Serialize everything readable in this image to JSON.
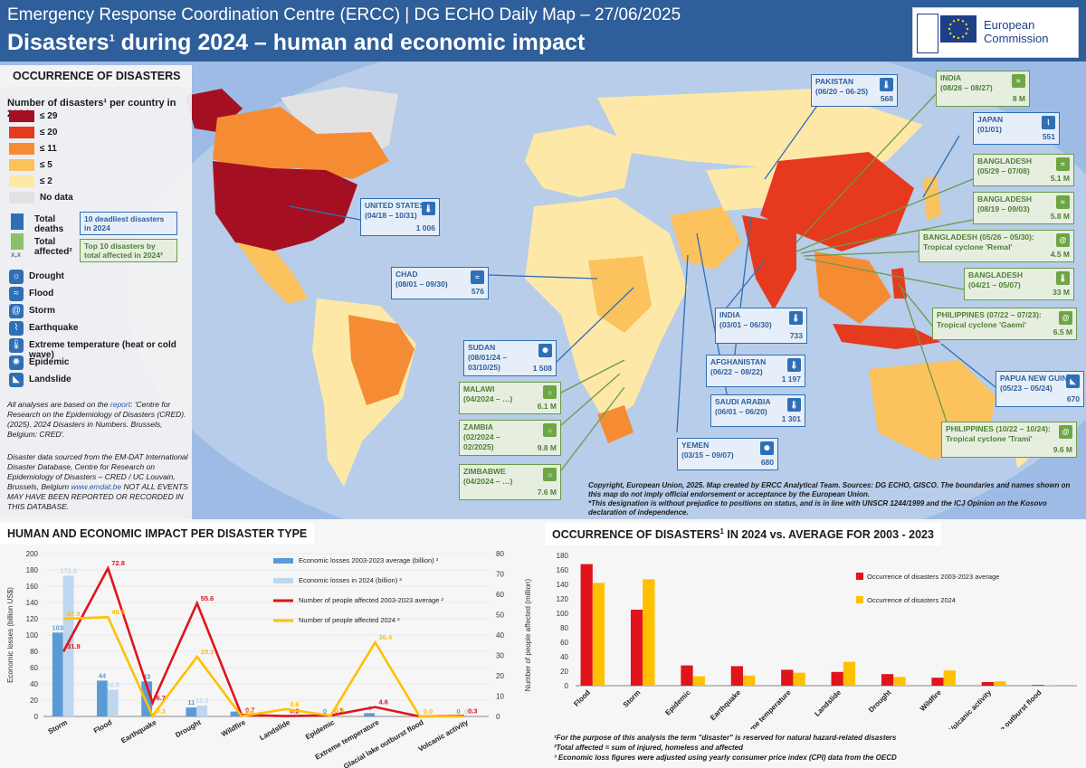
{
  "header": {
    "subtitle": "Emergency Response Coordination Centre (ERCC) | DG ECHO Daily Map – 27/06/2025",
    "title": "Disasters",
    "title_sup": "1",
    "title_rest": " during 2024 – human and economic impact",
    "logo_line1": "European",
    "logo_line2": "Commission"
  },
  "legend": {
    "section_title": "OCCURRENCE OF DISASTERS",
    "title": "Number of disasters¹ per country in 2024",
    "classes": [
      {
        "label": "≤ 29",
        "color": "#a50f22"
      },
      {
        "label": "≤ 20",
        "color": "#e53a1e"
      },
      {
        "label": "≤ 11",
        "color": "#f58c34"
      },
      {
        "label": "≤ 5",
        "color": "#fbc25e"
      },
      {
        "label": "≤ 2",
        "color": "#fde8a8"
      },
      {
        "label": "No data",
        "color": "#e2e2e2"
      }
    ],
    "total_deaths": "Total deaths",
    "total_affected": "Total affected²",
    "badge_xx": "x,x",
    "deadliest_label": "10 deadliest disasters in 2024",
    "affected_label": "Top 10 disasters by total affected in 2024²",
    "types": [
      {
        "label": "Drought",
        "icon": "drought-icon",
        "glyph": "☼"
      },
      {
        "label": "Flood",
        "icon": "flood-icon",
        "glyph": "≈"
      },
      {
        "label": "Storm",
        "icon": "storm-icon",
        "glyph": "@"
      },
      {
        "label": "Earthquake",
        "icon": "earthquake-icon",
        "glyph": "⌇"
      },
      {
        "label": "Extreme temperature (heat or cold wave)",
        "icon": "thermometer-icon",
        "glyph": "🌡"
      },
      {
        "label": "Epidemic",
        "icon": "epidemic-icon",
        "glyph": "✺"
      },
      {
        "label": "Landslide",
        "icon": "landslide-icon",
        "glyph": "◣"
      }
    ],
    "note1_pre": "All analyses are based on the ",
    "note1_link": "report",
    "note1_post": ": 'Centre for Research on the Epidemiology of Disasters (CRED). (2025). 2024 Disasters in Numbers. Brussels, Belgium: CRED'.",
    "note2_pre": "Disaster data sourced from the EM-DAT International Disaster Database, Centre for Research on Epidemiology of Disasters – CRED / UC Louvain, Brussels, Belgium ",
    "note2_link": "www.emdat.be",
    "note2_post": " NOT ALL EVENTS MAY HAVE BEEN REPORTED OR RECORDED IN THIS DATABASE."
  },
  "callouts": [
    {
      "name": "united-states",
      "kind": "deaths",
      "lines": [
        "UNITED STATES",
        "(04/18 – 10/31)"
      ],
      "value": "1 006",
      "icon": "thermometer-icon",
      "glyph": "🌡"
    },
    {
      "name": "chad",
      "kind": "deaths",
      "lines": [
        "CHAD",
        "(08/01 – 09/30)"
      ],
      "value": "576",
      "icon": "flood-icon",
      "glyph": "≈"
    },
    {
      "name": "sudan",
      "kind": "deaths",
      "lines": [
        "SUDAN",
        "(08/01/24 –",
        "03/10/25)"
      ],
      "value": "1 508",
      "icon": "epidemic-icon",
      "glyph": "✺"
    },
    {
      "name": "malawi",
      "kind": "affected",
      "lines": [
        "MALAWI",
        "(04/2024 – …)"
      ],
      "value": "6.1 M",
      "icon": "drought-icon",
      "glyph": "☼"
    },
    {
      "name": "zambia",
      "kind": "affected",
      "lines": [
        "ZAMBIA",
        "(02/2024 –",
        "02/2025)"
      ],
      "value": "9.8 M",
      "icon": "drought-icon",
      "glyph": "☼"
    },
    {
      "name": "zimbabwe",
      "kind": "affected",
      "lines": [
        "ZIMBABWE",
        "(04/2024 – …)"
      ],
      "value": "7.6 M",
      "icon": "drought-icon",
      "glyph": "☼"
    },
    {
      "name": "pakistan",
      "kind": "deaths",
      "lines": [
        "PAKISTAN",
        "(06/20 – 06-25)"
      ],
      "value": "568",
      "icon": "thermometer-icon",
      "glyph": "🌡"
    },
    {
      "name": "india-flood",
      "kind": "affected",
      "lines": [
        "INDIA",
        "(08/26 – 08/27)"
      ],
      "value": "8 M",
      "icon": "flood-icon",
      "glyph": "≈"
    },
    {
      "name": "japan",
      "kind": "deaths",
      "lines": [
        "JAPAN",
        "(01/01)"
      ],
      "value": "551",
      "icon": "earthquake-icon",
      "glyph": "⌇"
    },
    {
      "name": "bangladesh-1",
      "kind": "affected",
      "lines": [
        "BANGLADESH",
        "(05/29 – 07/08)"
      ],
      "value": "5.1 M",
      "icon": "flood-icon",
      "glyph": "≈"
    },
    {
      "name": "bangladesh-2",
      "kind": "affected",
      "lines": [
        "BANGLADESH",
        "(08/19 – 09/03)"
      ],
      "value": "5.8 M",
      "icon": "flood-icon",
      "glyph": "≈"
    },
    {
      "name": "bangladesh-remal",
      "kind": "affected",
      "lines": [
        "BANGLADESH (05/26 – 05/30):",
        "Tropical cyclone 'Remal'"
      ],
      "value": "4.5 M",
      "icon": "storm-icon",
      "glyph": "@"
    },
    {
      "name": "bangladesh-3",
      "kind": "affected",
      "lines": [
        "BANGLADESH",
        "(04/21 – 05/07)"
      ],
      "value": "33 M",
      "icon": "thermometer-icon",
      "glyph": "🌡"
    },
    {
      "name": "philippines-gaemi",
      "kind": "affected",
      "lines": [
        "PHILIPPINES (07/22 – 07/23):",
        "Tropical cyclone 'Gaemi'"
      ],
      "value": "6.5 M",
      "icon": "storm-icon",
      "glyph": "@"
    },
    {
      "name": "india-heat",
      "kind": "deaths",
      "lines": [
        "INDIA",
        "(03/01 – 06/30)"
      ],
      "value": "733",
      "icon": "thermometer-icon",
      "glyph": "🌡"
    },
    {
      "name": "afghanistan",
      "kind": "deaths",
      "lines": [
        "AFGHANISTAN",
        "(06/22 – 08/22)"
      ],
      "value": "1 197",
      "icon": "thermometer-icon",
      "glyph": "🌡"
    },
    {
      "name": "saudi-arabia",
      "kind": "deaths",
      "lines": [
        "SAUDI ARABIA",
        "(06/01 – 06/20)"
      ],
      "value": "1 301",
      "icon": "thermometer-icon",
      "glyph": "🌡"
    },
    {
      "name": "yemen",
      "kind": "deaths",
      "lines": [
        "YEMEN",
        "(03/15 – 09/07)"
      ],
      "value": "680",
      "icon": "epidemic-icon",
      "glyph": "✺"
    },
    {
      "name": "papua-new-guinea",
      "kind": "deaths",
      "lines": [
        "PAPUA NEW GUINEA",
        "(05/23 – 05/24)"
      ],
      "value": "670",
      "icon": "landslide-icon",
      "glyph": "◣"
    },
    {
      "name": "philippines-trami",
      "kind": "affected",
      "lines": [
        "PHILIPPINES (10/22 – 10/24):",
        "Tropical cyclone 'Trami'"
      ],
      "value": "9.6 M",
      "icon": "storm-icon",
      "glyph": "@"
    }
  ],
  "copyright": "Copyright, European Union, 2025. Map created by ERCC Analytical Team. Sources: DG ECHO, GISCO. The boundaries and names shown on this map do not imply official endorsement or acceptance by the European Union.",
  "copyright2": "*This designation is without prejudice to positions on status, and is in line with UNSCR 1244/1999 and the ICJ Opinion on the Kosovo declaration of independence.",
  "chart_data": [
    {
      "type": "bar",
      "title": "HUMAN AND ECONOMIC IMPACT PER DISASTER TYPE",
      "categories": [
        "Storm",
        "Flood",
        "Earthquake",
        "Drought",
        "Wildfire",
        "Landslide",
        "Epidemic",
        "Extreme temperature",
        "Glacial lake outburst flood",
        "Volcanic activity"
      ],
      "ylabel": "Economic losses (billion US$)",
      "y2label": "Number of people affected (million)",
      "ylim": [
        0,
        200
      ],
      "y2lim": [
        0,
        80
      ],
      "yticks": [
        "0",
        "20",
        "40",
        "60",
        "80",
        "100",
        "120",
        "140",
        "160",
        "180",
        "200"
      ],
      "y2ticks": [
        "0",
        "10",
        "20",
        "30",
        "40",
        "50",
        "60",
        "70",
        "80"
      ],
      "series": [
        {
          "name": "Economic losses 2003-2023 average (billion) ³",
          "kind": "bar",
          "axis": "left",
          "color": "#5b9bd5",
          "values": [
            103,
            44,
            43,
            11,
            6,
            1,
            0,
            4,
            0,
            0
          ],
          "labels": [
            "103",
            "44",
            "43",
            "11",
            "",
            "",
            "0",
            "4",
            "",
            "0"
          ]
        },
        {
          "name": "Economic losses in 2024 (billion) ³",
          "kind": "bar",
          "axis": "left",
          "color": "#bdd7ee",
          "values": [
            172.8,
            32.8,
            0,
            13.3,
            0,
            0.5,
            0,
            0,
            0,
            0
          ],
          "labels": [
            "172.8",
            "32.8",
            "",
            "13.3",
            "",
            "",
            "",
            "",
            "",
            "0.0"
          ]
        },
        {
          "name": "Number of people affected 2003-2023 average ²",
          "kind": "line",
          "axis": "right",
          "color": "#e0141a",
          "values": [
            31.9,
            72.8,
            6.7,
            55.6,
            0.7,
            0.2,
            0.5,
            4.6,
            0,
            0.3
          ],
          "labels": [
            "31.9",
            "72.8",
            "6.7",
            "55.6",
            "0.7",
            "0.2",
            "0.5",
            "4.6",
            "",
            "0.3"
          ]
        },
        {
          "name": "Number of people affected 2024 ²",
          "kind": "line",
          "axis": "right",
          "color": "#ffc000",
          "values": [
            47.9,
            48.8,
            0.3,
            29.3,
            0.1,
            3.6,
            0.4,
            36.4,
            0,
            0
          ],
          "labels": [
            "47.9",
            "48.8",
            "0.3",
            "29.3",
            "0.1",
            "3.6",
            "0.4",
            "36.4",
            "0.0",
            ""
          ]
        }
      ]
    },
    {
      "type": "bar",
      "title": "OCCURRENCE OF DISASTERS",
      "title_sup": "1",
      "title_rest": " IN 2024 vs. AVERAGE FOR 2003 - 2023",
      "categories": [
        "Flood",
        "Storm",
        "Epidemic",
        "Earthquake",
        "Extreme temperature",
        "Landslide",
        "Drought",
        "Wildfire",
        "Volcanic activity",
        "Glacial lake outburst flood"
      ],
      "ylim": [
        0,
        180
      ],
      "yticks": [
        "0",
        "20",
        "40",
        "60",
        "80",
        "100",
        "120",
        "140",
        "160",
        "180"
      ],
      "series": [
        {
          "name": "Occurrence of disasters 2003-2023 average",
          "color": "#e0141a",
          "values": [
            168,
            105,
            28,
            27,
            22,
            19,
            16,
            11,
            5,
            1
          ]
        },
        {
          "name": "Occurrence of disasters 2024",
          "color": "#ffc000",
          "values": [
            142,
            147,
            13,
            14,
            18,
            33,
            12,
            21,
            6,
            1
          ]
        }
      ]
    }
  ],
  "footnotes": [
    "¹For the purpose of this analysis the term \"disaster\" is reserved for natural hazard-related disasters",
    "²Total affected = sum of injured, homeless and affected",
    "³ Economic loss figures were adjusted using yearly consumer price index (CPI) data from the OECD"
  ]
}
